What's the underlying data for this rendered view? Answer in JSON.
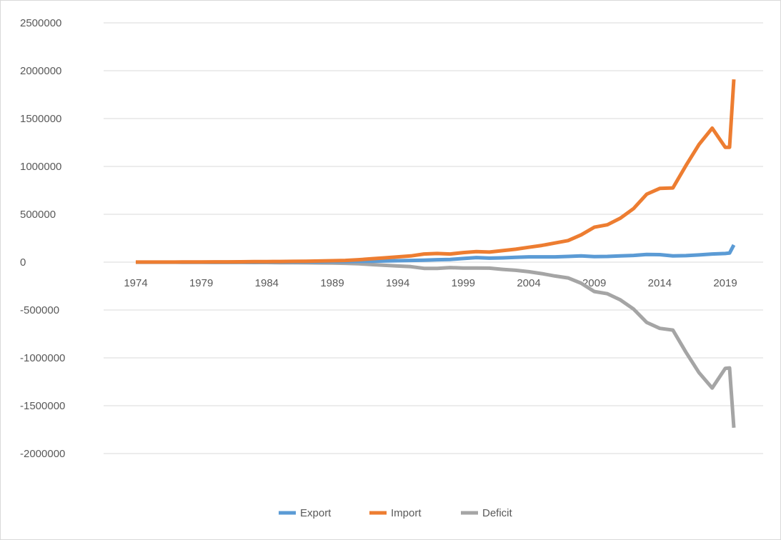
{
  "chart_data": {
    "type": "line",
    "title": "",
    "xlabel": "",
    "ylabel": "",
    "ylim": [
      -2000000,
      2500000
    ],
    "yticks": [
      2500000,
      2000000,
      1500000,
      1000000,
      500000,
      0,
      -500000,
      -1000000,
      -1500000,
      -2000000
    ],
    "ytick_labels": [
      "2500000",
      "2000000",
      "1500000",
      "1000000",
      "500000",
      "0",
      "-500000",
      "-1000000",
      "-1500000",
      "-2000000"
    ],
    "xtick_labels": [
      "1974",
      "1979",
      "1984",
      "1989",
      "1994",
      "1999",
      "2004",
      "2009",
      "2014",
      "2019"
    ],
    "x": [
      "1974",
      "1975",
      "1976",
      "1977",
      "1978",
      "1979",
      "1980",
      "1981",
      "1982",
      "1983",
      "1984",
      "1985",
      "1986",
      "1987",
      "1988",
      "1989",
      "1990",
      "1991",
      "1992",
      "1993",
      "1994",
      "1995",
      "1996",
      "1997",
      "1998",
      "1999",
      "2000",
      "2001",
      "2002",
      "2003",
      "2004",
      "2005",
      "2006",
      "2007",
      "2008",
      "2009",
      "2010",
      "2011",
      "2012",
      "2013",
      "2014",
      "2015",
      "2016",
      "2017",
      "2018",
      "2019",
      "2019",
      "2019"
    ],
    "grid": true,
    "legend_position": "bottom",
    "series": [
      {
        "name": "Export",
        "color": "#5b9bd5",
        "values": [
          0,
          0,
          0,
          0,
          0,
          0,
          0,
          0,
          1000,
          1000,
          2000,
          2000,
          2000,
          3000,
          4000,
          5000,
          6000,
          8000,
          10000,
          12000,
          15000,
          18000,
          20000,
          25000,
          28000,
          38000,
          48000,
          42000,
          45000,
          50000,
          55000,
          55000,
          55000,
          60000,
          65000,
          58000,
          60000,
          65000,
          70000,
          80000,
          78000,
          65000,
          68000,
          75000,
          85000,
          90000,
          95000,
          180000
        ]
      },
      {
        "name": "Import",
        "color": "#ed7d31",
        "values": [
          1000,
          1000,
          1000,
          1000,
          2000,
          2000,
          3000,
          3000,
          4000,
          5000,
          6000,
          7000,
          8000,
          10000,
          12000,
          15000,
          18000,
          25000,
          35000,
          45000,
          55000,
          65000,
          85000,
          90000,
          85000,
          100000,
          110000,
          105000,
          120000,
          135000,
          155000,
          175000,
          200000,
          225000,
          285000,
          365000,
          390000,
          460000,
          560000,
          710000,
          770000,
          775000,
          1010000,
          1230000,
          1400000,
          1200000,
          1200000,
          1910000
        ]
      },
      {
        "name": "Deficit",
        "color": "#a5a5a5",
        "values": [
          -1000,
          -1000,
          -1000,
          -1000,
          -2000,
          -2000,
          -3000,
          -3000,
          -3000,
          -4000,
          -4000,
          -5000,
          -6000,
          -7000,
          -8000,
          -10000,
          -12000,
          -17000,
          -25000,
          -33000,
          -40000,
          -47000,
          -65000,
          -65000,
          -57000,
          -62000,
          -62000,
          -63000,
          -75000,
          -85000,
          -100000,
          -120000,
          -145000,
          -165000,
          -220000,
          -307000,
          -330000,
          -395000,
          -490000,
          -630000,
          -692000,
          -710000,
          -942000,
          -1155000,
          -1315000,
          -1110000,
          -1105000,
          -1730000
        ]
      }
    ]
  }
}
